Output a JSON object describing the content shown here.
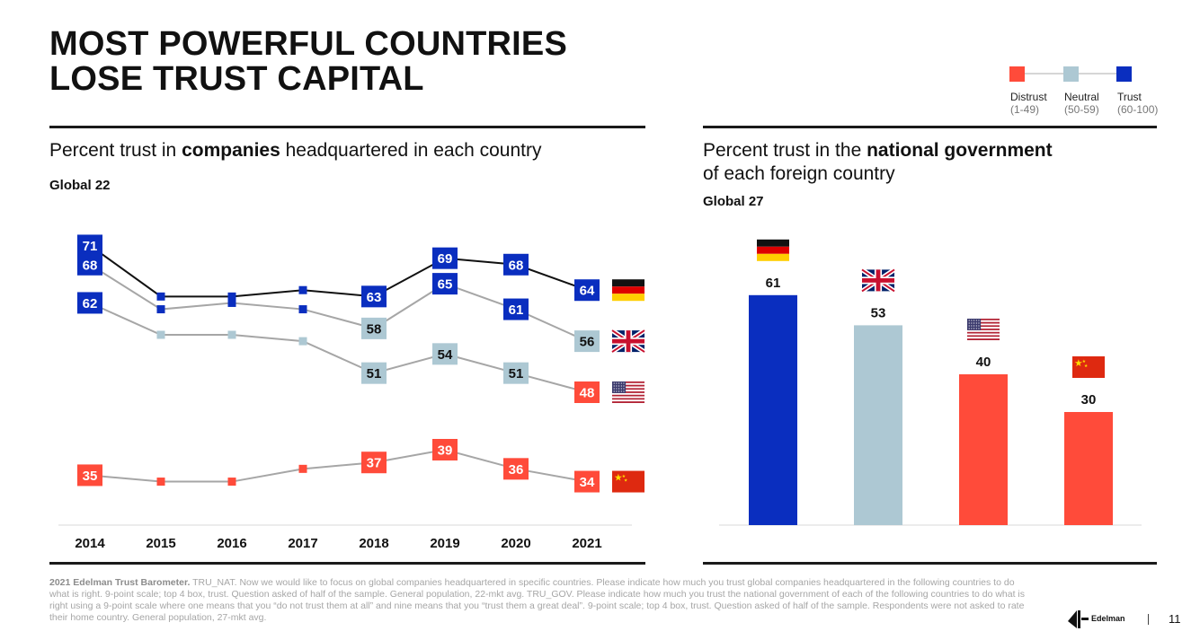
{
  "title": {
    "line1": "MOST POWERFUL COUNTRIES",
    "line2": "LOSE TRUST CAPITAL"
  },
  "colors": {
    "trust": "#0a2ebf",
    "neutral": "#adc8d3",
    "distrust": "#ff4b3a",
    "line_dark": "#111111",
    "line_grey": "#a6a6a6"
  },
  "legend": [
    {
      "label": "Distrust",
      "range": "(1-49)",
      "color": "#ff4b3a"
    },
    {
      "label": "Neutral",
      "range": "(50-59)",
      "color": "#adc8d3"
    },
    {
      "label": "Trust",
      "range": "(60-100)",
      "color": "#0a2ebf"
    }
  ],
  "left_panel": {
    "subtitle_pre": "Percent trust in ",
    "subtitle_bold": "companies",
    "subtitle_post": " headquartered  in each country",
    "global_label": "Global 22"
  },
  "right_panel": {
    "subtitle_pre": "Percent trust in the ",
    "subtitle_bold": "national government",
    "subtitle_line2": "of each foreign country",
    "global_label": "Global 27"
  },
  "chart_data": [
    {
      "type": "line",
      "x": [
        "2014",
        "2015",
        "2016",
        "2017",
        "2018",
        "2019",
        "2020",
        "2021"
      ],
      "ylim": [
        30,
        75
      ],
      "series": [
        {
          "flag": "germany-flag",
          "values": [
            71,
            63,
            63,
            64,
            63,
            69,
            68,
            64
          ],
          "labeled": [
            true,
            false,
            false,
            false,
            true,
            true,
            true,
            true
          ],
          "line": "dark"
        },
        {
          "flag": "uk-flag",
          "values": [
            68,
            61,
            62,
            61,
            58,
            65,
            61,
            56
          ],
          "labeled": [
            true,
            false,
            false,
            false,
            true,
            true,
            true,
            true
          ],
          "line": "grey"
        },
        {
          "flag": "usa-flag",
          "values": [
            62,
            57,
            57,
            56,
            51,
            54,
            51,
            48
          ],
          "labeled": [
            true,
            false,
            false,
            false,
            true,
            true,
            true,
            true
          ],
          "line": "grey"
        },
        {
          "flag": "china-flag",
          "values": [
            35,
            34,
            34,
            36,
            37,
            39,
            36,
            34
          ],
          "labeled": [
            true,
            false,
            false,
            false,
            true,
            true,
            true,
            true
          ],
          "line": "grey"
        }
      ]
    },
    {
      "type": "bar",
      "categories": [
        "germany-flag",
        "uk-flag",
        "usa-flag",
        "china-flag"
      ],
      "values": [
        61,
        53,
        40,
        30
      ],
      "ylim": [
        0,
        100
      ]
    }
  ],
  "footnote": {
    "bold": "2021 Edelman Trust Barometer.",
    "text": " TRU_NAT. Now we would like to focus on global companies headquartered in specific countries. Please indicate how much you trust global companies headquartered in the following countries to do what is right. 9-point scale; top 4 box, trust. Question asked of half of the sample. General population, 22-mkt avg. TRU_GOV. Please indicate how much you trust the national government of each of the following countries to do what is right using a 9-point scale where one means that you “do not trust them at all” and nine means that you “trust them a great deal”. 9-point scale; top 4 box, trust. Question asked of half of the sample. Respondents were not asked to rate their home country. General population, 27-mkt avg."
  },
  "brand": "Edelman",
  "page_number": "11"
}
